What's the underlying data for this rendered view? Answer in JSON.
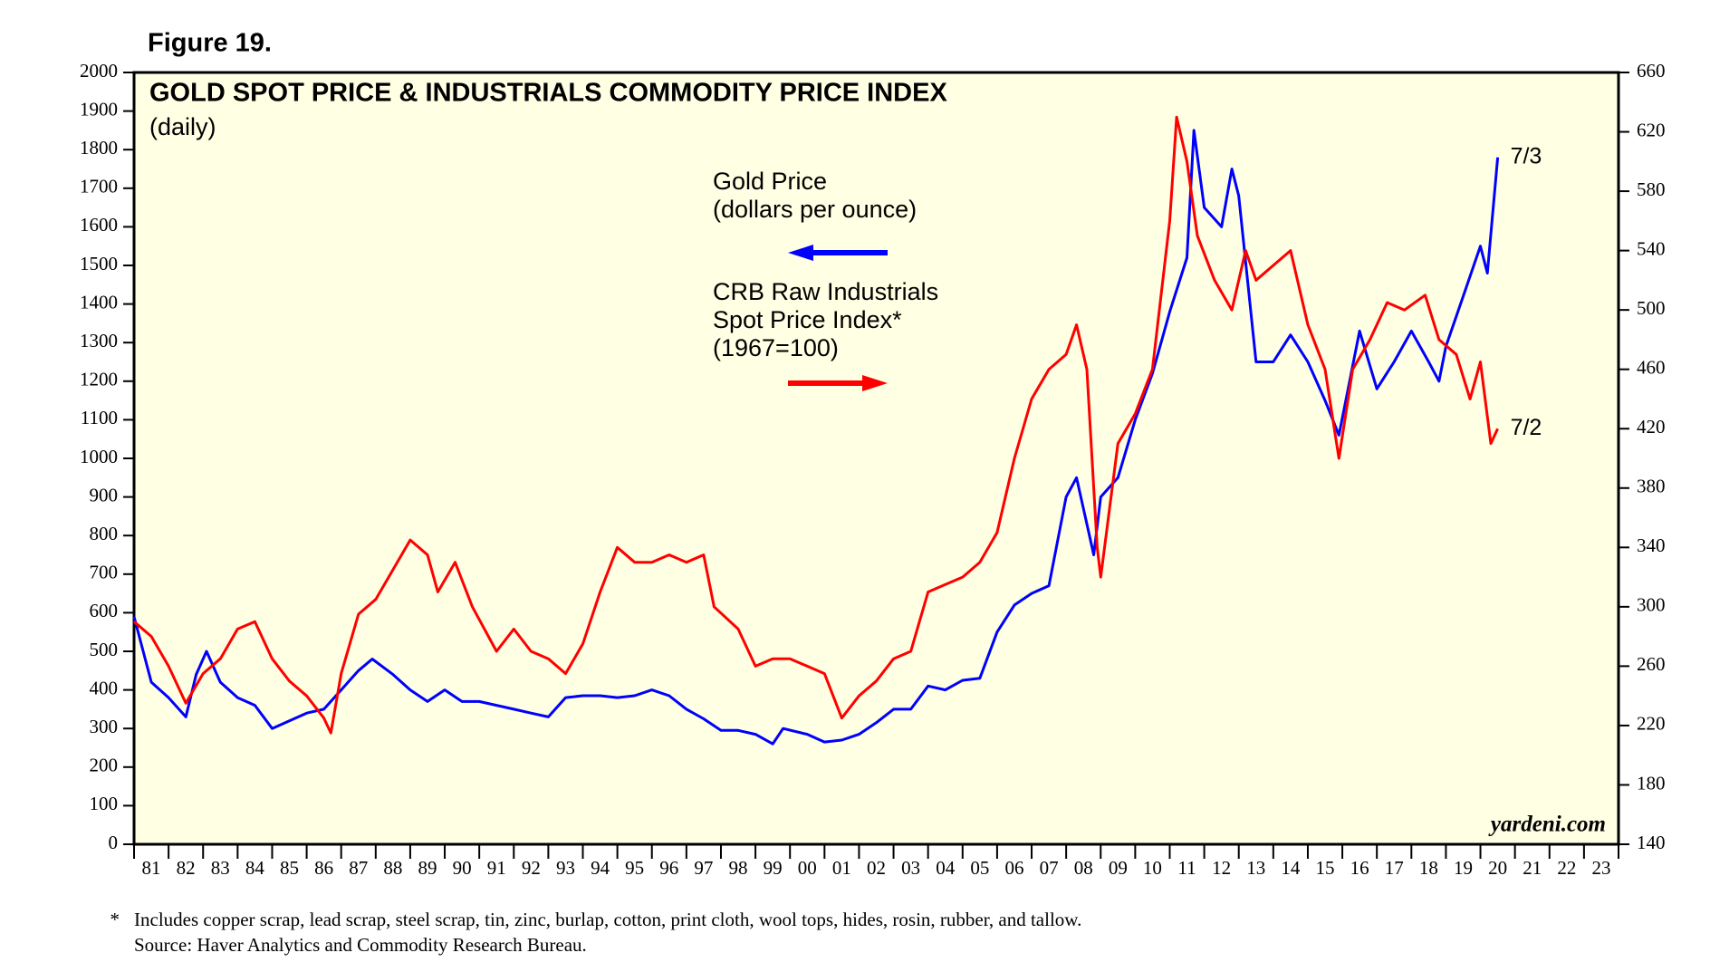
{
  "chart_data": {
    "type": "line",
    "figure_label": "Figure 19.",
    "title": "GOLD SPOT PRICE & INDUSTRIALS COMMODITY PRICE INDEX",
    "subtitle": "(daily)",
    "watermark": "yardeni.com",
    "footnote_marker": "*",
    "footnotes": [
      "Includes copper scrap, lead scrap, steel scrap, tin, zinc, burlap, cotton, print cloth, wool tops, hides, rosin, rubber, and tallow.",
      "Source: Haver Analytics and Commodity Research Bureau."
    ],
    "xlim": [
      1981,
      2024
    ],
    "xticks": [
      {
        "value": 1981,
        "label": "81"
      },
      {
        "value": 1982,
        "label": "82"
      },
      {
        "value": 1983,
        "label": "83"
      },
      {
        "value": 1984,
        "label": "84"
      },
      {
        "value": 1985,
        "label": "85"
      },
      {
        "value": 1986,
        "label": "86"
      },
      {
        "value": 1987,
        "label": "87"
      },
      {
        "value": 1988,
        "label": "88"
      },
      {
        "value": 1989,
        "label": "89"
      },
      {
        "value": 1990,
        "label": "90"
      },
      {
        "value": 1991,
        "label": "91"
      },
      {
        "value": 1992,
        "label": "92"
      },
      {
        "value": 1993,
        "label": "93"
      },
      {
        "value": 1994,
        "label": "94"
      },
      {
        "value": 1995,
        "label": "95"
      },
      {
        "value": 1996,
        "label": "96"
      },
      {
        "value": 1997,
        "label": "97"
      },
      {
        "value": 1998,
        "label": "98"
      },
      {
        "value": 1999,
        "label": "99"
      },
      {
        "value": 2000,
        "label": "00"
      },
      {
        "value": 2001,
        "label": "01"
      },
      {
        "value": 2002,
        "label": "02"
      },
      {
        "value": 2003,
        "label": "03"
      },
      {
        "value": 2004,
        "label": "04"
      },
      {
        "value": 2005,
        "label": "05"
      },
      {
        "value": 2006,
        "label": "06"
      },
      {
        "value": 2007,
        "label": "07"
      },
      {
        "value": 2008,
        "label": "08"
      },
      {
        "value": 2009,
        "label": "09"
      },
      {
        "value": 2010,
        "label": "10"
      },
      {
        "value": 2011,
        "label": "11"
      },
      {
        "value": 2012,
        "label": "12"
      },
      {
        "value": 2013,
        "label": "13"
      },
      {
        "value": 2014,
        "label": "14"
      },
      {
        "value": 2015,
        "label": "15"
      },
      {
        "value": 2016,
        "label": "16"
      },
      {
        "value": 2017,
        "label": "17"
      },
      {
        "value": 2018,
        "label": "18"
      },
      {
        "value": 2019,
        "label": "19"
      },
      {
        "value": 2020,
        "label": "20"
      },
      {
        "value": 2021,
        "label": "21"
      },
      {
        "value": 2022,
        "label": "22"
      },
      {
        "value": 2023,
        "label": "23"
      }
    ],
    "ylim": [
      0,
      2000
    ],
    "yticks": [
      0,
      100,
      200,
      300,
      400,
      500,
      600,
      700,
      800,
      900,
      1000,
      1100,
      1200,
      1300,
      1400,
      1500,
      1600,
      1700,
      1800,
      1900,
      2000
    ],
    "y2lim": [
      140,
      660
    ],
    "y2ticks": [
      140,
      180,
      220,
      260,
      300,
      340,
      380,
      420,
      460,
      500,
      540,
      580,
      620,
      660
    ],
    "background": "#ffffe3",
    "series": [
      {
        "name": "Gold Price",
        "name_lines": [
          "Gold Price",
          "(dollars per ounce)"
        ],
        "color": "#0000ff",
        "axis": "y",
        "end_label": "7/3",
        "x": [
          1981.0,
          1981.5,
          1982.0,
          1982.5,
          1982.8,
          1983.1,
          1983.5,
          1984.0,
          1984.5,
          1985.0,
          1985.5,
          1986.0,
          1986.5,
          1987.0,
          1987.5,
          1987.9,
          1988.5,
          1989.0,
          1989.5,
          1990.0,
          1990.5,
          1991.0,
          1991.5,
          1992.0,
          1992.5,
          1993.0,
          1993.5,
          1994.0,
          1994.5,
          1995.0,
          1995.5,
          1996.0,
          1996.5,
          1997.0,
          1997.5,
          1998.0,
          1998.5,
          1999.0,
          1999.5,
          1999.8,
          2000.5,
          2001.0,
          2001.5,
          2002.0,
          2002.5,
          2003.0,
          2003.5,
          2004.0,
          2004.5,
          2005.0,
          2005.5,
          2006.0,
          2006.5,
          2007.0,
          2007.5,
          2008.0,
          2008.3,
          2008.8,
          2009.0,
          2009.5,
          2010.0,
          2010.5,
          2011.0,
          2011.5,
          2011.7,
          2012.0,
          2012.5,
          2012.8,
          2013.0,
          2013.5,
          2014.0,
          2014.5,
          2015.0,
          2015.5,
          2015.9,
          2016.5,
          2017.0,
          2017.5,
          2018.0,
          2018.5,
          2018.8,
          2019.0,
          2019.5,
          2020.0,
          2020.2,
          2020.5
        ],
        "values": [
          590,
          420,
          380,
          330,
          440,
          500,
          420,
          380,
          360,
          300,
          320,
          340,
          350,
          400,
          450,
          480,
          440,
          400,
          370,
          400,
          370,
          370,
          360,
          350,
          340,
          330,
          380,
          385,
          385,
          380,
          385,
          400,
          385,
          350,
          325,
          295,
          295,
          285,
          260,
          300,
          285,
          265,
          270,
          285,
          315,
          350,
          350,
          410,
          400,
          425,
          430,
          550,
          620,
          650,
          670,
          900,
          950,
          750,
          900,
          950,
          1100,
          1220,
          1380,
          1520,
          1850,
          1650,
          1600,
          1750,
          1680,
          1250,
          1250,
          1320,
          1250,
          1150,
          1060,
          1330,
          1180,
          1250,
          1330,
          1250,
          1200,
          1290,
          1420,
          1550,
          1480,
          1780
        ]
      },
      {
        "name": "CRB Raw Industrials",
        "name_lines": [
          "CRB Raw Industrials",
          "Spot Price Index*",
          "(1967=100)"
        ],
        "color": "#ff0000",
        "axis": "y2",
        "end_label": "7/2",
        "x": [
          1981.0,
          1981.5,
          1982.0,
          1982.5,
          1983.0,
          1983.5,
          1984.0,
          1984.5,
          1985.0,
          1985.5,
          1986.0,
          1986.5,
          1986.7,
          1987.0,
          1987.5,
          1988.0,
          1988.5,
          1989.0,
          1989.5,
          1989.8,
          1990.3,
          1990.8,
          1991.5,
          1992.0,
          1992.5,
          1993.0,
          1993.5,
          1994.0,
          1994.5,
          1995.0,
          1995.5,
          1996.0,
          1996.5,
          1997.0,
          1997.5,
          1997.8,
          1998.5,
          1999.0,
          1999.5,
          2000.0,
          2000.5,
          2001.0,
          2001.5,
          2002.0,
          2002.5,
          2003.0,
          2003.5,
          2004.0,
          2004.5,
          2005.0,
          2005.5,
          2006.0,
          2006.5,
          2007.0,
          2007.5,
          2008.0,
          2008.3,
          2008.6,
          2008.9,
          2009.0,
          2009.5,
          2010.0,
          2010.5,
          2011.0,
          2011.2,
          2011.5,
          2011.8,
          2012.3,
          2012.8,
          2013.2,
          2013.5,
          2014.0,
          2014.5,
          2015.0,
          2015.5,
          2015.9,
          2016.3,
          2016.8,
          2017.3,
          2017.8,
          2018.4,
          2018.8,
          2019.3,
          2019.7,
          2020.0,
          2020.3,
          2020.5
        ],
        "values": [
          290,
          280,
          260,
          235,
          255,
          265,
          285,
          290,
          265,
          250,
          240,
          225,
          215,
          255,
          295,
          305,
          325,
          345,
          335,
          310,
          330,
          300,
          270,
          285,
          270,
          265,
          255,
          275,
          310,
          340,
          330,
          330,
          335,
          330,
          335,
          300,
          285,
          260,
          265,
          265,
          260,
          255,
          225,
          240,
          250,
          265,
          270,
          310,
          315,
          320,
          330,
          350,
          400,
          440,
          460,
          470,
          490,
          460,
          340,
          320,
          410,
          430,
          460,
          560,
          630,
          600,
          550,
          520,
          500,
          540,
          520,
          530,
          540,
          490,
          460,
          400,
          460,
          480,
          505,
          500,
          510,
          480,
          470,
          440,
          465,
          410,
          420
        ]
      }
    ]
  }
}
